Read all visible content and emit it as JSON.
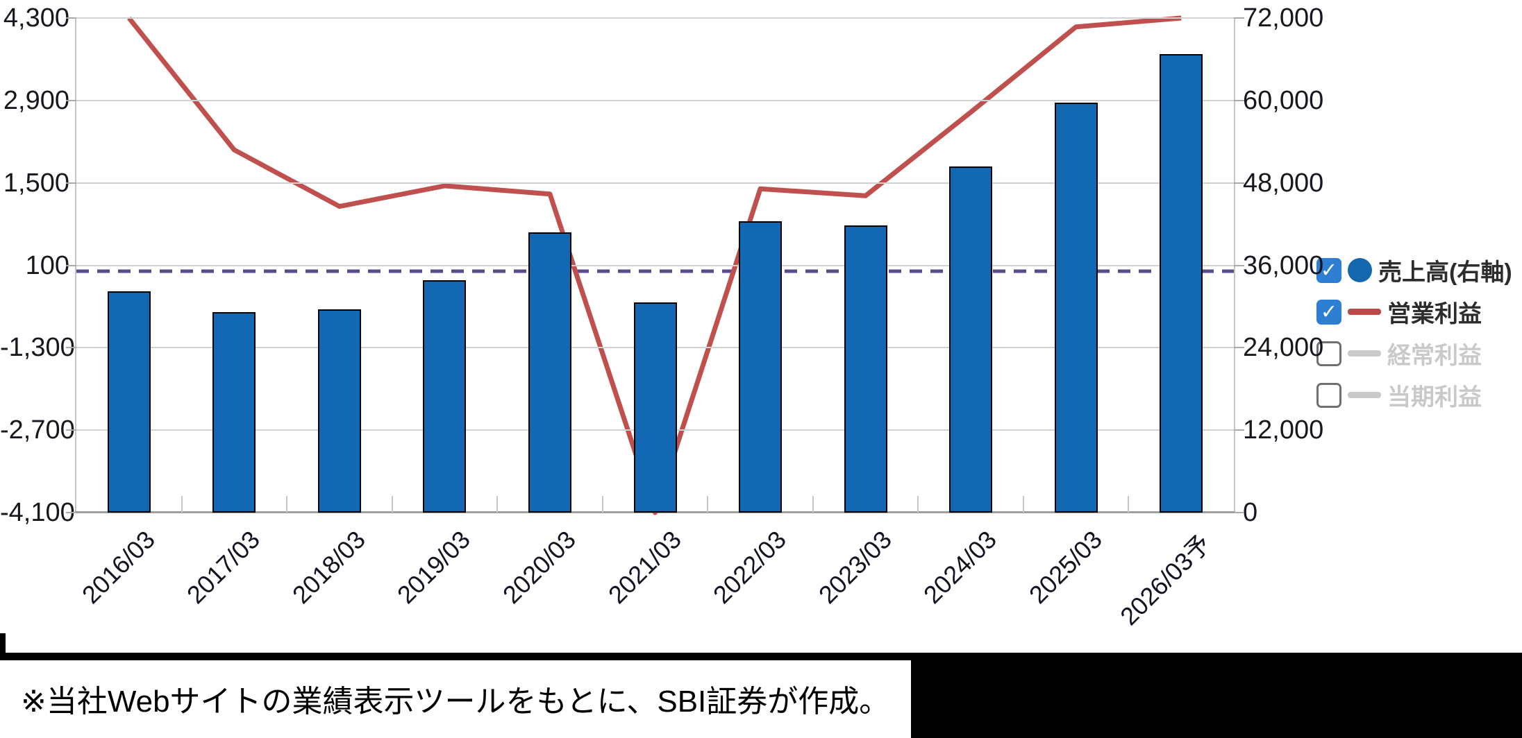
{
  "chart": {
    "left_axis": {
      "tick_labels": [
        "4,300",
        "2,900",
        "1,500",
        "100",
        "-1,300",
        "-2,700",
        "-4,100"
      ],
      "tick_values": [
        4300,
        2900,
        1500,
        100,
        -1300,
        -2700,
        -4100
      ],
      "min": -4100,
      "max": 4300
    },
    "right_axis": {
      "tick_labels": [
        "72,000",
        "60,000",
        "48,000",
        "36,000",
        "24,000",
        "12,000",
        "0"
      ],
      "tick_values": [
        72000,
        60000,
        48000,
        36000,
        24000,
        12000,
        0
      ],
      "min": 0,
      "max": 72000
    },
    "colors": {
      "bar_fill": "#1268b3",
      "bar_border": "#000000",
      "line_red": "#c0504d",
      "zero_dash": "#5a4b8a",
      "grid": "#d2d2d2",
      "disabled_gray": "#c9c9c9",
      "checkbox_blue": "#2e7fd2"
    }
  },
  "chart_data": {
    "type": "bar",
    "categories": [
      "2016/03",
      "2017/03",
      "2018/03",
      "2019/03",
      "2020/03",
      "2021/03",
      "2022/03",
      "2023/03",
      "2024/03",
      "2025/03",
      "2026/03予"
    ],
    "series": [
      {
        "name": "売上高(右軸)",
        "type": "bar",
        "axis": "right",
        "color": "#1268b3",
        "values": [
          32200,
          29200,
          29600,
          33800,
          40800,
          30600,
          42400,
          41800,
          50400,
          59700,
          66700
        ]
      },
      {
        "name": "営業利益",
        "type": "line",
        "axis": "left",
        "color": "#c0504d",
        "values": [
          4300,
          2060,
          1100,
          1450,
          1310,
          -4100,
          1400,
          1280,
          2700,
          4150,
          4300
        ]
      }
    ],
    "title": "",
    "xlabel": "",
    "ylabel": "",
    "left_axis_range": [
      -4100,
      4300
    ],
    "right_axis_range": [
      0,
      72000
    ],
    "zero_reference_line": {
      "axis": "left",
      "value": 0,
      "style": "dashed",
      "color": "#5a4b8a"
    },
    "grid": true,
    "legend_position": "right"
  },
  "legend": {
    "check_glyph": "✓",
    "items": [
      {
        "label": "売上高(右軸)",
        "checked": true,
        "enabled": true,
        "marker": "circle",
        "marker_color": "#1467ad",
        "text_color": "#2c2c2c"
      },
      {
        "label": "営業利益",
        "checked": true,
        "enabled": true,
        "marker": "line",
        "marker_color": "#b94a48",
        "text_color": "#2c2c2c"
      },
      {
        "label": "経常利益",
        "checked": false,
        "enabled": false,
        "marker": "line",
        "marker_color": "#c9c9c9",
        "text_color": "#c9c9c9"
      },
      {
        "label": "当期利益",
        "checked": false,
        "enabled": false,
        "marker": "line",
        "marker_color": "#c9c9c9",
        "text_color": "#c9c9c9"
      }
    ]
  },
  "footer": {
    "note": "※当社Webサイトの業績表示ツールをもとに、SBI証券が作成。"
  }
}
